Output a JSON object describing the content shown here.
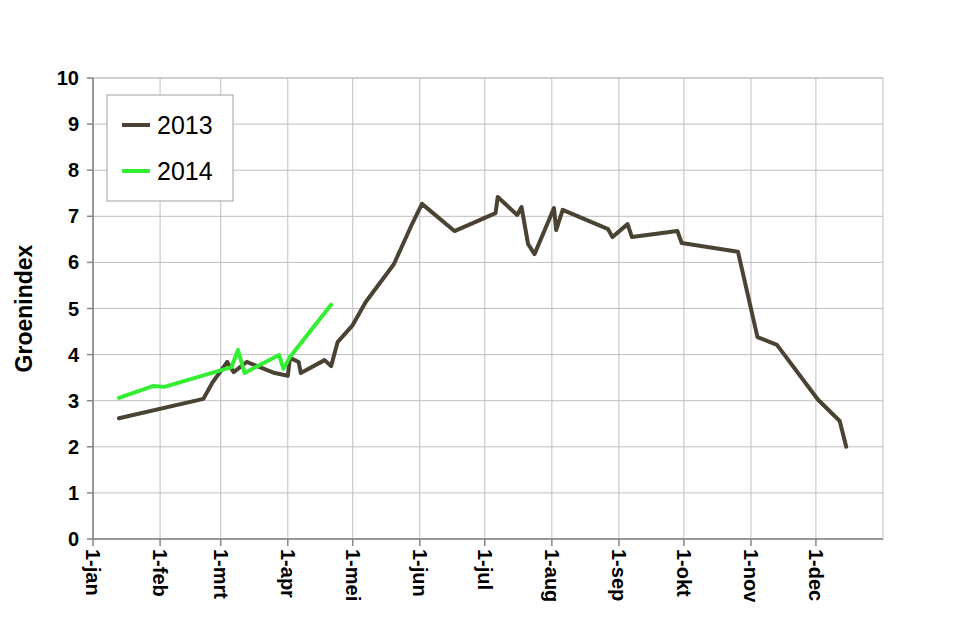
{
  "chart_data": {
    "type": "line",
    "y_label": "Groenindex",
    "xlim": [
      0,
      365
    ],
    "xticks": [
      {
        "value": 0,
        "label": "1-jan"
      },
      {
        "value": 31,
        "label": "1-feb"
      },
      {
        "value": 59,
        "label": "1-mrt"
      },
      {
        "value": 90,
        "label": "1-apr"
      },
      {
        "value": 120,
        "label": "1-mei"
      },
      {
        "value": 151,
        "label": "1-jun"
      },
      {
        "value": 181,
        "label": "1-jul"
      },
      {
        "value": 212,
        "label": "1-aug"
      },
      {
        "value": 243,
        "label": "1-sep"
      },
      {
        "value": 273,
        "label": "1-okt"
      },
      {
        "value": 304,
        "label": "1-nov"
      },
      {
        "value": 334,
        "label": "1-dec"
      }
    ],
    "ylim": [
      0,
      10
    ],
    "yticks": [
      0,
      1,
      2,
      3,
      4,
      5,
      6,
      7,
      8,
      9,
      10
    ],
    "grid": true,
    "legend": "top-left",
    "series": [
      {
        "name": "2013",
        "color": "#4a4334",
        "x": [
          12,
          51,
          55,
          62,
          65,
          71,
          84,
          90,
          91,
          95,
          96,
          107,
          110,
          113,
          120,
          126,
          139,
          147,
          152,
          167,
          186,
          187,
          196,
          198,
          201,
          204,
          213,
          214,
          217,
          238,
          240,
          247,
          249,
          270,
          272,
          298,
          307,
          316,
          335,
          345,
          348
        ],
        "values": [
          2.62,
          3.04,
          3.38,
          3.84,
          3.62,
          3.84,
          3.6,
          3.54,
          3.93,
          3.84,
          3.6,
          3.88,
          3.75,
          4.27,
          4.64,
          5.14,
          5.96,
          6.79,
          7.27,
          6.68,
          7.07,
          7.42,
          7.03,
          7.2,
          6.4,
          6.18,
          7.18,
          6.7,
          7.14,
          6.72,
          6.55,
          6.83,
          6.55,
          6.68,
          6.42,
          6.23,
          4.38,
          4.21,
          3.02,
          2.56,
          2.0
        ]
      },
      {
        "name": "2014",
        "color": "#33ee33",
        "x": [
          12,
          28,
          33,
          64,
          67,
          70,
          86,
          88,
          91,
          110
        ],
        "values": [
          3.06,
          3.32,
          3.3,
          3.73,
          4.1,
          3.6,
          3.99,
          3.69,
          3.95,
          5.08
        ]
      }
    ]
  }
}
